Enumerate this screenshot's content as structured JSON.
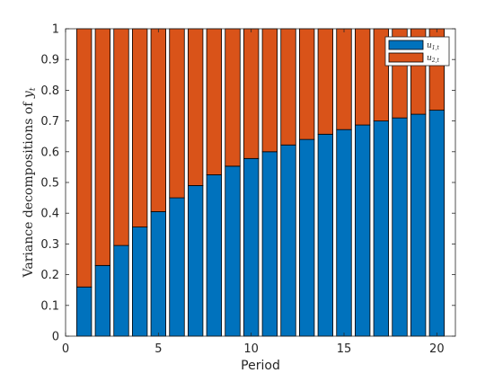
{
  "chart_data": {
    "type": "bar",
    "stacked": true,
    "x": [
      1,
      2,
      3,
      4,
      5,
      6,
      7,
      8,
      9,
      10,
      11,
      12,
      13,
      14,
      15,
      16,
      17,
      18,
      19,
      20
    ],
    "series": [
      {
        "name": "u_{1,t}",
        "color": "#0072bd",
        "values": [
          0.16,
          0.23,
          0.295,
          0.355,
          0.405,
          0.45,
          0.49,
          0.525,
          0.553,
          0.578,
          0.6,
          0.622,
          0.64,
          0.657,
          0.672,
          0.687,
          0.7,
          0.71,
          0.722,
          0.735
        ]
      },
      {
        "name": "u_{2,t}",
        "color": "#d95319",
        "values": [
          0.84,
          0.77,
          0.705,
          0.645,
          0.595,
          0.55,
          0.51,
          0.475,
          0.447,
          0.422,
          0.4,
          0.378,
          0.36,
          0.343,
          0.328,
          0.313,
          0.3,
          0.29,
          0.278,
          0.265
        ]
      }
    ],
    "xlabel": "Period",
    "ylabel_text": "Variance decompositions of ",
    "ylabel_var": "y",
    "ylabel_sub": "t",
    "xlim": [
      0,
      21
    ],
    "ylim": [
      0,
      1
    ],
    "xticks": [
      0,
      5,
      10,
      15,
      20
    ],
    "yticks": [
      0,
      0.1,
      0.2,
      0.3,
      0.4,
      0.5,
      0.6,
      0.7,
      0.8,
      0.9,
      1
    ],
    "ytick_labels": [
      "0",
      "0.1",
      "0.2",
      "0.3",
      "0.4",
      "0.5",
      "0.6",
      "0.7",
      "0.8",
      "0.9",
      "1"
    ],
    "legend": {
      "position": "top-right",
      "entries": [
        {
          "var": "u",
          "sub": "1,t",
          "color": "#0072bd"
        },
        {
          "var": "u",
          "sub": "2,t",
          "color": "#d95319"
        }
      ]
    },
    "grid": false
  }
}
